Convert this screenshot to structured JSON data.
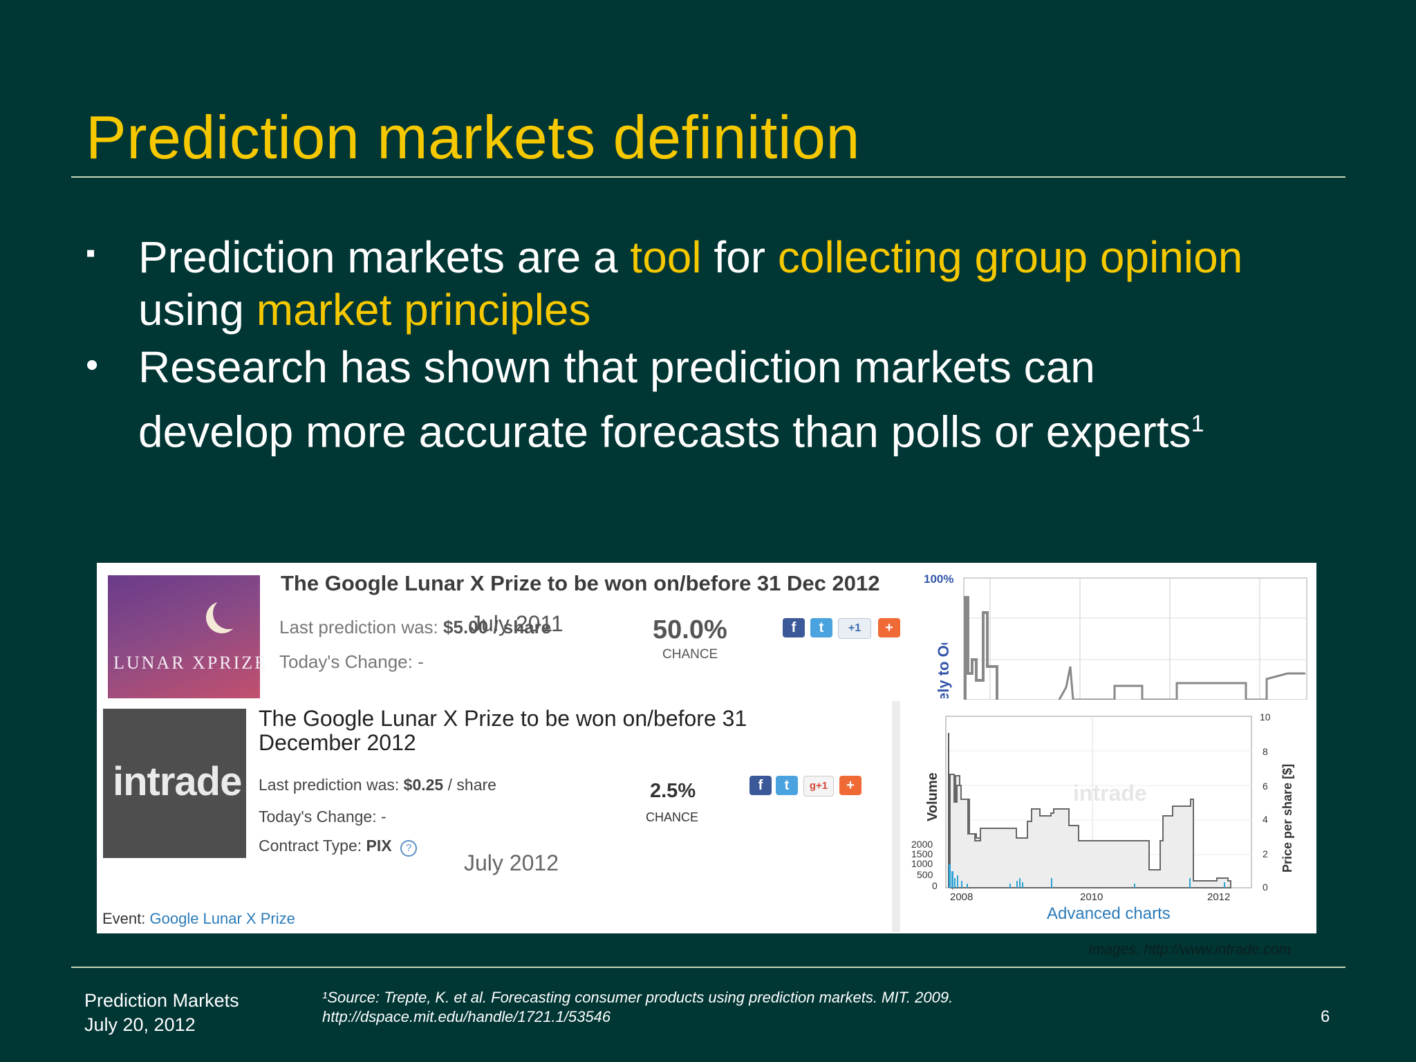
{
  "slide": {
    "title": "Prediction markets definition",
    "bullet1": {
      "mark": "▪",
      "part1": "Prediction markets are a ",
      "hl1": "tool",
      "part2": " for ",
      "hl2": "collecting group opinion",
      "line2_part1": "using ",
      "hl3": "market principles"
    },
    "bullet2": {
      "mark": "•",
      "line1": "Research has shown that prediction markets can",
      "line2": "develop more accurate forecasts than polls or experts",
      "footnote_mark": "1"
    },
    "footer": {
      "name": "Prediction Markets",
      "date": "July 20, 2012",
      "source_line1": "¹Source: Trepte, K. et al. Forecasting consumer products using prediction markets. MIT. 2009.",
      "source_line2": "http://dspace.mit.edu/handle/1721.1/53546",
      "page_number": "6",
      "images_credit": "Images: http://www.intrade.com"
    }
  },
  "screenshot_2011": {
    "logo_text": "LUNAR XPRIZE",
    "heading": "The Google Lunar X Prize to be won on/before 31 Dec 2012",
    "last_prediction_label": "Last prediction was:",
    "last_prediction_value": "$5.00 / share",
    "overlay_caption": "July 2011",
    "todays_change": "Today's Change: -",
    "chance_value": "50.0%",
    "chance_label": "CHANCE",
    "chart_top_label": "100%",
    "chart_axis_label": "ely to Occur"
  },
  "screenshot_2012": {
    "logo_text": "intrade",
    "heading_line1": "The Google Lunar X Prize to be won on/before 31",
    "heading_line2": "December 2012",
    "last_prediction_label": "Last prediction was:",
    "last_prediction_value": "$0.25",
    "last_prediction_unit": " / share",
    "todays_change": "Today's Change: -",
    "contract_type_label": "Contract Type:",
    "contract_type_value": "PIX",
    "chance_value": "2.5%",
    "chance_label": "CHANCE",
    "caption": "July 2012",
    "event_label": "Event:",
    "event_link": "Google Lunar X Prize",
    "advanced_charts": "Advanced charts",
    "chart_watermark": "intrade",
    "chart_volume_label": "Volume",
    "chart_price_label": "Price per share [$]",
    "volume_ticks": [
      "2000",
      "1500",
      "1000",
      "500",
      "0"
    ],
    "price_ticks": [
      "10",
      "8",
      "6",
      "4",
      "2",
      "0"
    ],
    "year_ticks": [
      "2008",
      "2010",
      "2012"
    ]
  },
  "share_icons": [
    "facebook-icon",
    "twitter-icon",
    "google-plus-icon",
    "add-icon"
  ],
  "colors": {
    "background": "#003634",
    "accent": "#f6c800",
    "text": "#ffffff",
    "link": "#2b7bb9"
  }
}
